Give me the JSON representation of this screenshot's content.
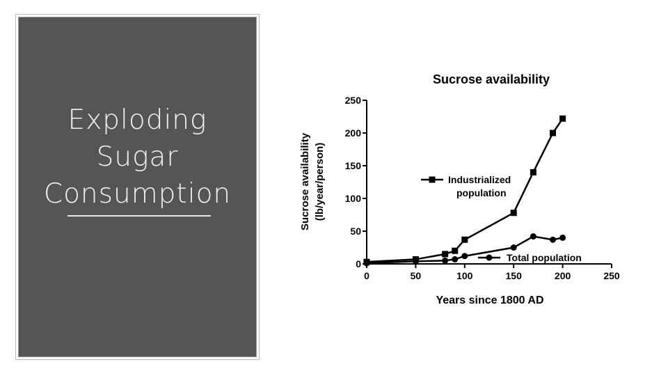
{
  "slide": {
    "title_lines": [
      "Exploding",
      "Sugar",
      "Consumption"
    ]
  },
  "chart_data": {
    "type": "line",
    "title": "Sucrose availability",
    "xlabel": "Years since 1800 AD",
    "ylabel": [
      "Sucrose availability",
      "(lb/year/person)"
    ],
    "xlim": [
      0,
      250
    ],
    "ylim": [
      0,
      250
    ],
    "xticks": [
      0,
      50,
      100,
      150,
      200,
      250
    ],
    "yticks": [
      0,
      50,
      100,
      150,
      200,
      250
    ],
    "grid": false,
    "series": [
      {
        "name": "Industrialized population",
        "legend_lines": [
          "Industrialized",
          "population"
        ],
        "marker": "square",
        "x": [
          0,
          50,
          80,
          90,
          100,
          150,
          170,
          190,
          200
        ],
        "y": [
          3,
          7,
          15,
          20,
          37,
          78,
          140,
          200,
          222
        ]
      },
      {
        "name": "Total population",
        "legend_lines": [
          "Total population"
        ],
        "marker": "circle",
        "x": [
          0,
          50,
          80,
          90,
          100,
          150,
          170,
          190,
          200
        ],
        "y": [
          1,
          4,
          5,
          7,
          12,
          25,
          42,
          37,
          40
        ]
      }
    ]
  }
}
